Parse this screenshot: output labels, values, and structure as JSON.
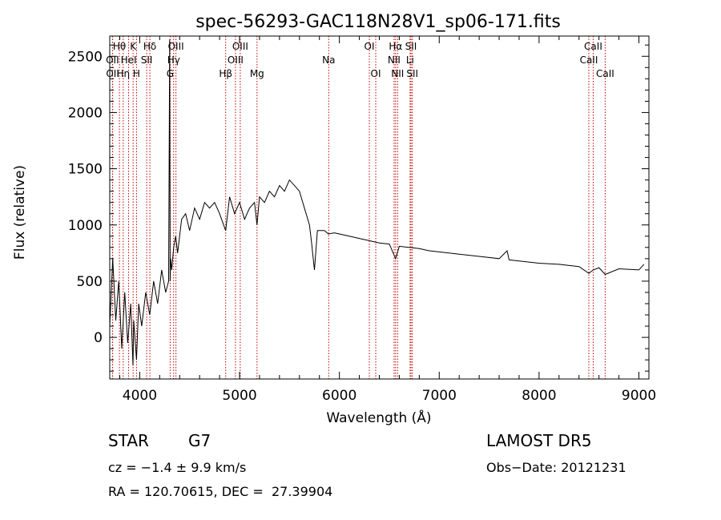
{
  "chart_data": {
    "type": "line",
    "title": "spec-56293-GAC118N28V1_sp06-171.fits",
    "xlabel": "Wavelength (Å)",
    "ylabel": "Flux (relative)",
    "xlim": [
      3700,
      9100
    ],
    "ylim": [
      -370,
      2680
    ],
    "xticks": [
      4000,
      5000,
      6000,
      7000,
      8000,
      9000
    ],
    "yticks": [
      0,
      500,
      1000,
      1500,
      2000,
      2500
    ],
    "line_color": "#000000",
    "marker_color": "#c00000",
    "series": [
      {
        "x": [
          3700,
          3730,
          3760,
          3790,
          3820,
          3850,
          3880,
          3910,
          3933,
          3940,
          3968,
          3990,
          4020,
          4060,
          4100,
          4140,
          4180,
          4220,
          4260,
          4290,
          4300,
          4305,
          4310,
          4320,
          4340,
          4360,
          4380,
          4420,
          4460,
          4500,
          4550,
          4600,
          4650,
          4700,
          4750,
          4800,
          4861,
          4900,
          4950,
          5000,
          5050,
          5100,
          5150,
          5175,
          5200,
          5250,
          5300,
          5350,
          5400,
          5450,
          5500,
          5550,
          5600,
          5650,
          5700,
          5720,
          5750,
          5780,
          5800,
          5850,
          5890,
          5950,
          6000,
          6100,
          6200,
          6300,
          6400,
          6500,
          6563,
          6600,
          6700,
          6800,
          6900,
          7000,
          7200,
          7400,
          7600,
          7680,
          7700,
          7800,
          8000,
          8200,
          8400,
          8498,
          8542,
          8600,
          8662,
          8800,
          9000,
          9050
        ],
        "y": [
          100,
          700,
          150,
          500,
          -100,
          400,
          -50,
          300,
          -250,
          150,
          -200,
          300,
          100,
          400,
          200,
          500,
          300,
          600,
          400,
          500,
          2650,
          500,
          700,
          600,
          800,
          900,
          750,
          1050,
          1100,
          950,
          1150,
          1050,
          1200,
          1150,
          1200,
          1100,
          950,
          1250,
          1100,
          1200,
          1050,
          1150,
          1200,
          1000,
          1250,
          1200,
          1300,
          1250,
          1350,
          1300,
          1400,
          1350,
          1300,
          1150,
          1000,
          850,
          600,
          950,
          950,
          950,
          920,
          930,
          920,
          900,
          880,
          860,
          840,
          830,
          700,
          810,
          800,
          790,
          770,
          760,
          740,
          720,
          700,
          770,
          690,
          680,
          660,
          650,
          630,
          570,
          600,
          620,
          560,
          610,
          600,
          650
        ]
      }
    ]
  },
  "line_markers": [
    {
      "label": "Hθ",
      "x": 3797,
      "row": 1
    },
    {
      "label": "K",
      "x": 3934,
      "row": 1
    },
    {
      "label": "Hδ",
      "x": 4102,
      "row": 1
    },
    {
      "label": "OIII",
      "x": 4363,
      "row": 1
    },
    {
      "label": "OIII",
      "x": 5007,
      "row": 1
    },
    {
      "label": "OI",
      "x": 6300,
      "row": 1
    },
    {
      "label": "Hα",
      "x": 6563,
      "row": 1
    },
    {
      "label": "SII",
      "x": 6717,
      "row": 1
    },
    {
      "label": "CaII",
      "x": 8542,
      "row": 1
    },
    {
      "label": "OII",
      "x": 3727,
      "row": 2
    },
    {
      "label": "HeI",
      "x": 3889,
      "row": 2
    },
    {
      "label": "SII",
      "x": 4070,
      "row": 2
    },
    {
      "label": "Hγ",
      "x": 4340,
      "row": 2
    },
    {
      "label": "OIII",
      "x": 4959,
      "row": 2
    },
    {
      "label": "Na",
      "x": 5893,
      "row": 2
    },
    {
      "label": "NII",
      "x": 6548,
      "row": 2
    },
    {
      "label": "Li",
      "x": 6708,
      "row": 2
    },
    {
      "label": "CaII",
      "x": 8498,
      "row": 2
    },
    {
      "label": "OII",
      "x": 3729,
      "row": 3
    },
    {
      "label": "Hη",
      "x": 3835,
      "row": 3
    },
    {
      "label": "H",
      "x": 3968,
      "row": 3
    },
    {
      "label": "G",
      "x": 4305,
      "row": 3
    },
    {
      "label": "Hβ",
      "x": 4861,
      "row": 3
    },
    {
      "label": "Mg",
      "x": 5175,
      "row": 3
    },
    {
      "label": "OI",
      "x": 6364,
      "row": 3
    },
    {
      "label": "NII",
      "x": 6583,
      "row": 3
    },
    {
      "label": "SII",
      "x": 6731,
      "row": 3
    },
    {
      "label": "CaII",
      "x": 8662,
      "row": 3
    }
  ],
  "info": {
    "object_class": "STAR",
    "subclass": "G7",
    "survey": "LAMOST DR5",
    "cz": "cz = −1.4 ± 9.9 km/s",
    "obs_date": "Obs−Date: 20121231",
    "coords": "RA = 120.70615, DEC =  27.39904"
  }
}
